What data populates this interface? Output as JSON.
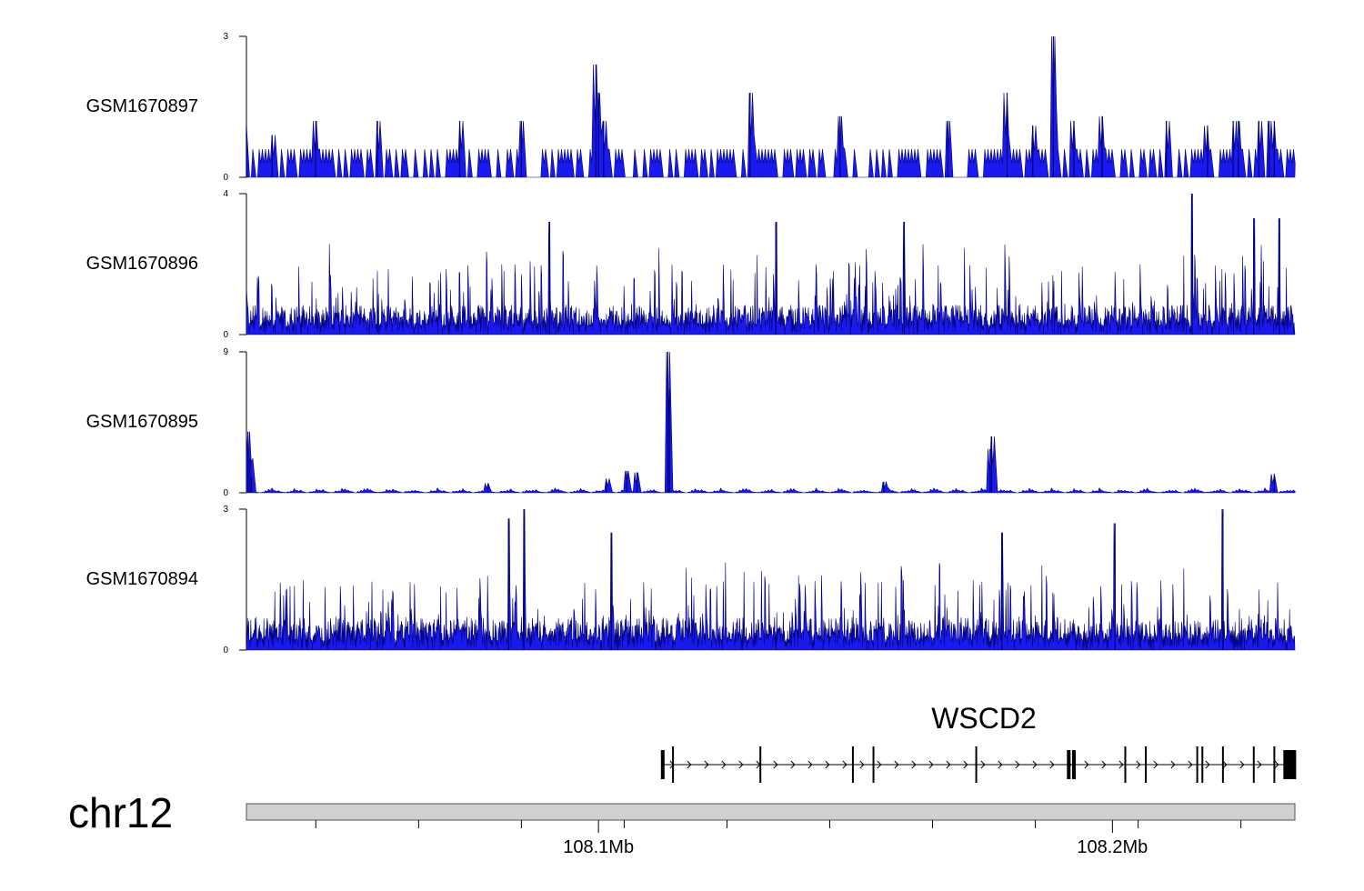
{
  "chart_data": {
    "type": "area",
    "colors": {
      "signal_fill": "#1a1aee",
      "signal_edge": "#00007a",
      "gene": "#000000",
      "ideogram": "#d0d0d0"
    },
    "x_range_mb": [
      108.0315,
      108.2355
    ],
    "tracks": [
      {
        "name": "GSM1670897",
        "ylim": [
          0,
          3
        ],
        "ytick_labels": [
          "3",
          "0"
        ],
        "style": "sparse",
        "baseline": 0.6,
        "noise_low": 0.0,
        "noise_high": 0.0,
        "peaks": [
          [
            108.0315,
            1.1
          ],
          [
            108.0365,
            0.9
          ],
          [
            108.045,
            1.2
          ],
          [
            108.057,
            1.2
          ],
          [
            108.073,
            1.2
          ],
          [
            108.085,
            1.2
          ],
          [
            108.0995,
            2.4
          ],
          [
            108.1,
            1.8
          ],
          [
            108.101,
            1.2
          ],
          [
            108.1295,
            1.8
          ],
          [
            108.147,
            1.3
          ],
          [
            108.168,
            1.2
          ],
          [
            108.1795,
            1.8
          ],
          [
            108.1845,
            1.1
          ],
          [
            108.1885,
            3.0
          ],
          [
            108.1925,
            1.2
          ],
          [
            108.198,
            1.3
          ],
          [
            108.2105,
            1.2
          ],
          [
            108.2185,
            1.1
          ],
          [
            108.2235,
            1.2
          ],
          [
            108.2245,
            1.2
          ],
          [
            108.2285,
            1.2
          ],
          [
            108.2305,
            1.2
          ],
          [
            108.2315,
            1.2
          ]
        ]
      },
      {
        "name": "GSM1670896",
        "ylim": [
          0,
          4
        ],
        "ytick_labels": [
          "4",
          "0"
        ],
        "style": "dense",
        "baseline": 0.6,
        "noise_low": 0.25,
        "noise_high": 2.0,
        "peaks": [
          [
            108.0905,
            3.2
          ],
          [
            108.1595,
            3.2
          ],
          [
            108.2155,
            4.0
          ],
          [
            108.2275,
            3.3
          ],
          [
            108.1345,
            3.2
          ],
          [
            108.2325,
            3.3
          ]
        ]
      },
      {
        "name": "GSM1670895",
        "ylim": [
          0,
          9
        ],
        "ytick_labels": [
          "9",
          "0"
        ],
        "style": "quiet",
        "baseline": 0.3,
        "noise_low": 0.0,
        "noise_high": 0.0,
        "peaks": [
          [
            108.0318,
            3.9
          ],
          [
            108.0322,
            2.2
          ],
          [
            108.0325,
            1.0
          ],
          [
            108.1135,
            9.0
          ],
          [
            108.1138,
            6.6
          ],
          [
            108.1765,
            3.6
          ],
          [
            108.1762,
            2.8
          ],
          [
            108.1055,
            1.4
          ],
          [
            108.1075,
            1.3
          ],
          [
            108.1015,
            0.9
          ],
          [
            108.0785,
            0.6
          ],
          [
            108.2315,
            1.2
          ],
          [
            108.1555,
            0.7
          ]
        ]
      },
      {
        "name": "GSM1670894",
        "ylim": [
          0,
          3
        ],
        "ytick_labels": [
          "3",
          "0"
        ],
        "style": "dense",
        "baseline": 0.5,
        "noise_low": 0.2,
        "noise_high": 1.5,
        "peaks": [
          [
            108.0855,
            3.0
          ],
          [
            108.2005,
            2.7
          ],
          [
            108.2215,
            3.0
          ],
          [
            108.0825,
            2.8
          ],
          [
            108.1025,
            2.5
          ],
          [
            108.1785,
            2.5
          ]
        ]
      }
    ],
    "gene": {
      "name": "WSCD2",
      "start_mb": 108.1125,
      "end_mb": 108.2355,
      "strand": "+",
      "exons_mb": [
        108.1125,
        108.1145,
        108.1315,
        108.1495,
        108.1535,
        108.1735,
        108.1915,
        108.1925,
        108.2025,
        108.2065,
        108.2165,
        108.2175,
        108.2215,
        108.2275,
        108.2315,
        108.2345
      ]
    },
    "chromosome": "chr12",
    "x_tick_labels": [
      {
        "position_mb": 108.1,
        "label": "108.1Mb"
      },
      {
        "position_mb": 108.2,
        "label": "108.2Mb"
      }
    ],
    "minor_ticks_mb": [
      108.045,
      108.065,
      108.085,
      108.105,
      108.125,
      108.145,
      108.165,
      108.185,
      108.205,
      108.225
    ]
  }
}
